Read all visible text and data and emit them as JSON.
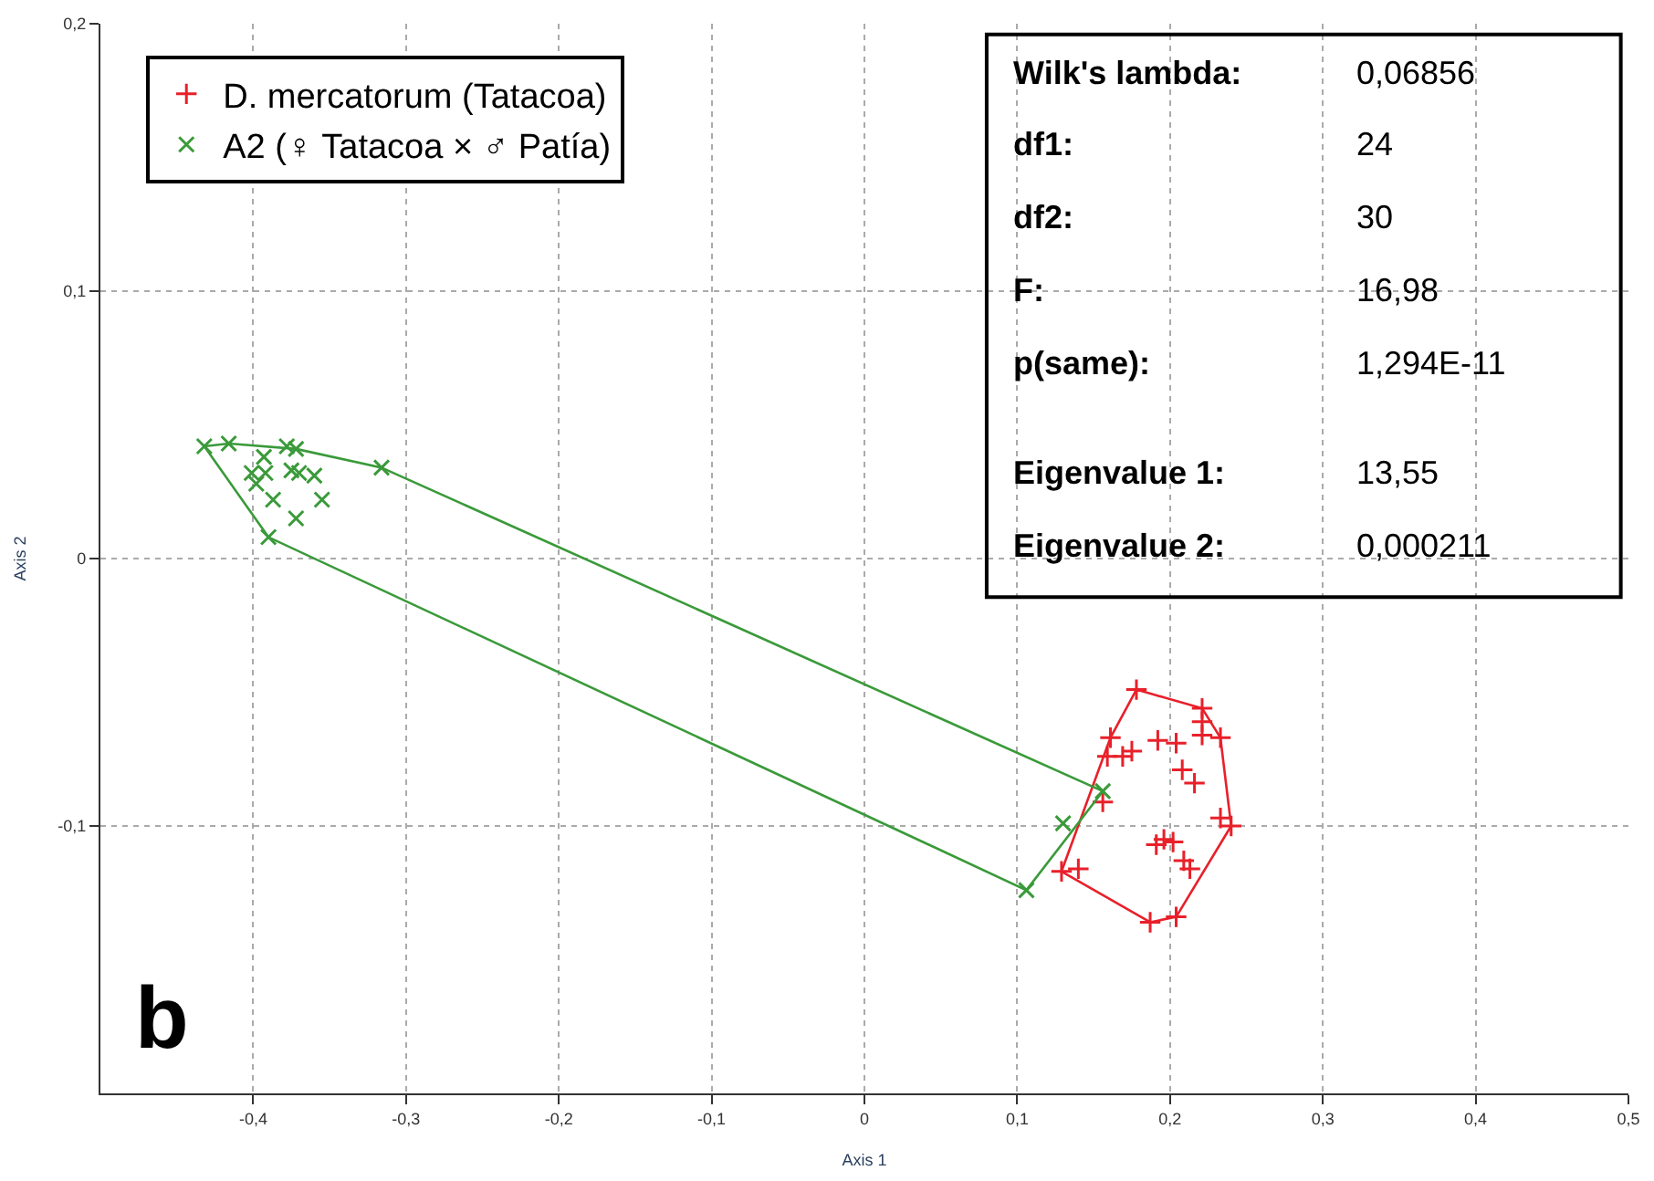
{
  "chart_data": {
    "type": "scatter",
    "xlabel": "Axis 1",
    "ylabel": "Axis 2",
    "xlim": [
      -0.5,
      0.5
    ],
    "ylim": [
      -0.2,
      0.2
    ],
    "xticks": [
      {
        "value": -0.4,
        "label": "-0,4"
      },
      {
        "value": -0.3,
        "label": "-0,3"
      },
      {
        "value": -0.2,
        "label": "-0,2"
      },
      {
        "value": -0.1,
        "label": "-0,1"
      },
      0,
      {
        "value": 0.1,
        "label": "0,1"
      },
      {
        "value": 0.2,
        "label": "0,2"
      },
      {
        "value": 0.3,
        "label": "0,3"
      },
      {
        "value": 0.4,
        "label": "0,4"
      },
      {
        "value": 0.5,
        "label": "0,5"
      }
    ],
    "yticks": [
      {
        "value": -0.1,
        "label": "-0,1"
      },
      0,
      {
        "value": 0.1,
        "label": "0,1"
      },
      {
        "value": 0.2,
        "label": "0,2"
      }
    ],
    "grid": true,
    "legend": "top left",
    "series": [
      {
        "name": "D. mercatorum (Tatacoa)",
        "color": "#e8202a",
        "marker": "cross",
        "x": [
          0.178,
          0.221,
          0.221,
          0.221,
          0.233,
          0.161,
          0.192,
          0.204,
          0.175,
          0.169,
          0.159,
          0.208,
          0.216,
          0.156,
          0.233,
          0.24,
          0.191,
          0.202,
          0.196,
          0.209,
          0.213,
          0.129,
          0.14,
          0.187,
          0.204
        ],
        "values": [
          -0.049,
          -0.056,
          -0.061,
          -0.066,
          -0.067,
          -0.067,
          -0.068,
          -0.069,
          -0.072,
          -0.074,
          -0.074,
          -0.079,
          -0.084,
          -0.091,
          -0.097,
          -0.1,
          -0.107,
          -0.106,
          -0.105,
          -0.113,
          -0.116,
          -0.117,
          -0.116,
          -0.136,
          -0.134
        ]
      },
      {
        "name": "A2 (♀ Tatacoa × ♂ Patía)",
        "color": "#3a9a3a",
        "marker": "x",
        "x": [
          -0.432,
          -0.416,
          -0.378,
          -0.372,
          -0.393,
          -0.401,
          -0.392,
          -0.375,
          -0.37,
          -0.36,
          -0.398,
          -0.387,
          -0.355,
          -0.372,
          -0.39,
          -0.316,
          0.13,
          0.156,
          0.106
        ],
        "values": [
          0.042,
          0.043,
          0.042,
          0.041,
          0.038,
          0.032,
          0.032,
          0.033,
          0.032,
          0.031,
          0.028,
          0.022,
          0.022,
          0.015,
          0.008,
          0.034,
          -0.099,
          -0.087,
          -0.124
        ]
      },
      {
        "type": "line",
        "color": "#e8202a",
        "marker": "none",
        "x": [
          0.129,
          0.161,
          0.178,
          0.221,
          0.233,
          0.24
        ],
        "values": [
          -0.117,
          -0.067,
          -0.049,
          -0.056,
          -0.067,
          -0.1
        ]
      },
      {
        "type": "line",
        "color": "#e8202a",
        "marker": "none",
        "x": [
          0.129,
          0.187,
          0.204,
          0.24
        ],
        "values": [
          -0.117,
          -0.136,
          -0.134,
          -0.1
        ]
      },
      {
        "type": "line",
        "color": "#3a9a3a",
        "marker": "none",
        "x": [
          -0.432,
          -0.416,
          -0.372,
          -0.316,
          0.156
        ],
        "values": [
          0.042,
          0.043,
          0.041,
          0.034,
          -0.087
        ]
      },
      {
        "type": "line",
        "color": "#3a9a3a",
        "marker": "none",
        "x": [
          -0.432,
          -0.39,
          0.106,
          0.156
        ],
        "values": [
          0.042,
          0.008,
          -0.124,
          -0.087
        ]
      }
    ],
    "annotations": [
      "Wilk's lambda: 0,06856",
      "df1: 24",
      "df2: 30",
      "F: 16,98",
      "p(same): 1,294E-11",
      "Eigenvalue 1: 13,55",
      "Eigenvalue 2: 0,000211",
      "b"
    ]
  }
}
